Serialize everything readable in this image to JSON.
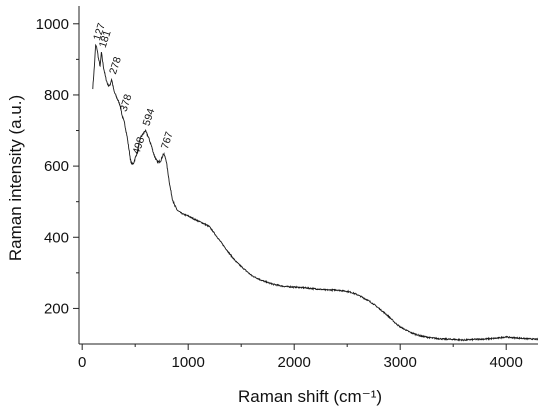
{
  "chart_data": {
    "type": "line",
    "title": "",
    "xlabel": "Raman shift (cm⁻¹)",
    "ylabel": "Raman intensity (a.u.)",
    "xlim": [
      -30,
      4300
    ],
    "ylim": [
      100,
      1050
    ],
    "x_ticks": [
      0,
      1000,
      2000,
      3000,
      4000
    ],
    "y_ticks": [
      200,
      400,
      600,
      800,
      1000
    ],
    "grid": false,
    "legend": "none",
    "line_color": "#1a1a1a",
    "series": [
      {
        "x": [
          100,
          115,
          127,
          140,
          155,
          170,
          181,
          200,
          220,
          240,
          260,
          278,
          300,
          330,
          360,
          378,
          400,
          420,
          440,
          460,
          480,
          498,
          520,
          550,
          575,
          594,
          620,
          650,
          680,
          710,
          740,
          767,
          790,
          810,
          830,
          850,
          870,
          900,
          950,
          1000,
          1050,
          1100,
          1150,
          1200,
          1250,
          1300,
          1350,
          1400,
          1450,
          1500,
          1600,
          1700,
          1800,
          1900,
          2000,
          2100,
          2200,
          2300,
          2400,
          2500,
          2550,
          2600,
          2650,
          2700,
          2750,
          2800,
          2850,
          2900,
          2950,
          3000,
          3100,
          3200,
          3300,
          3400,
          3500,
          3600,
          3700,
          3800,
          3900,
          3950,
          4000,
          4050,
          4100,
          4200,
          4300
        ],
        "y": [
          820,
          880,
          940,
          930,
          900,
          880,
          920,
          880,
          850,
          830,
          825,
          845,
          810,
          790,
          770,
          740,
          720,
          690,
          650,
          610,
          605,
          620,
          640,
          680,
          690,
          700,
          685,
          660,
          630,
          610,
          615,
          635,
          620,
          580,
          540,
          510,
          490,
          475,
          465,
          460,
          452,
          445,
          438,
          430,
          410,
          390,
          370,
          350,
          332,
          318,
          292,
          278,
          268,
          262,
          260,
          258,
          255,
          252,
          252,
          248,
          244,
          238,
          230,
          222,
          212,
          200,
          188,
          175,
          160,
          148,
          132,
          122,
          117,
          114,
          113,
          111,
          113,
          114,
          116,
          118,
          120,
          118,
          117,
          115,
          113
        ]
      }
    ],
    "annotations": [
      {
        "text": "127",
        "x": 127,
        "y": 940
      },
      {
        "text": "181",
        "x": 181,
        "y": 920
      },
      {
        "text": "278",
        "x": 278,
        "y": 845
      },
      {
        "text": "378",
        "x": 378,
        "y": 740
      },
      {
        "text": "498",
        "x": 498,
        "y": 620
      },
      {
        "text": "594",
        "x": 594,
        "y": 700
      },
      {
        "text": "767",
        "x": 767,
        "y": 635
      }
    ]
  }
}
